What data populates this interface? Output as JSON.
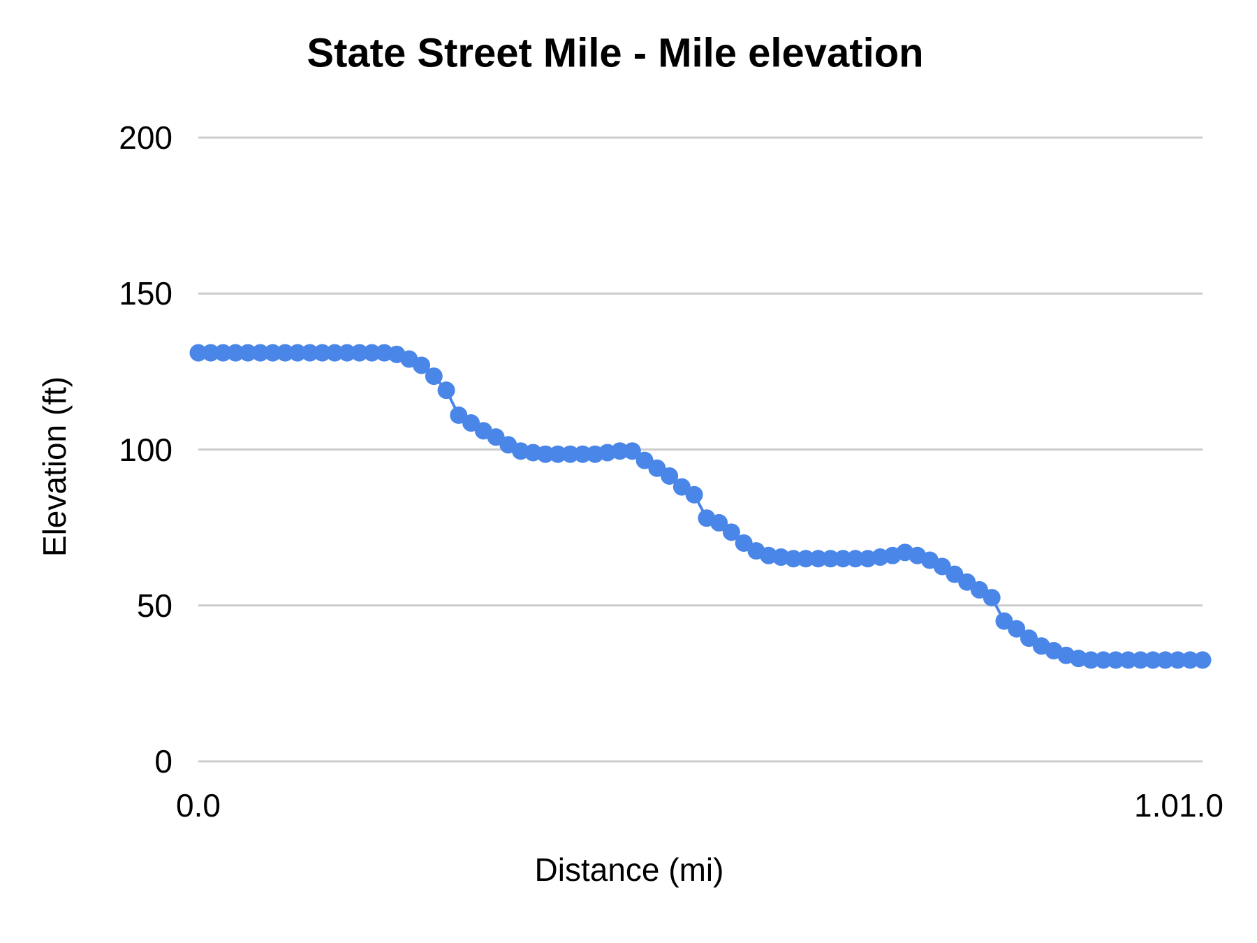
{
  "page": {
    "background": "#ffffff"
  },
  "chart_data": {
    "type": "line",
    "title": "State Street Mile - Mile elevation",
    "xlabel": "Distance (mi)",
    "ylabel": "Elevation (ft)",
    "legend": "none",
    "grid": true,
    "gridline_color": "#cccccc",
    "series_color": "#4a86e8",
    "point_style": "large-circles",
    "ylim": [
      0,
      200
    ],
    "xlim": [
      0,
      1.0125
    ],
    "y_ticks": [
      0,
      50,
      100,
      150,
      200
    ],
    "y_tick_labels": [
      "0",
      "50",
      "100",
      "150",
      "200"
    ],
    "x_tick_labels": [
      "0.0",
      "1.01.0"
    ],
    "series": [
      {
        "name": "Mile elevation",
        "x": [
          0,
          0.0125,
          0.025,
          0.0375,
          0.05,
          0.0625,
          0.075,
          0.0875,
          0.1,
          0.1125,
          0.125,
          0.1375,
          0.15,
          0.1625,
          0.175,
          0.1875,
          0.2,
          0.2125,
          0.225,
          0.2375,
          0.25,
          0.2625,
          0.275,
          0.2875,
          0.3,
          0.3125,
          0.325,
          0.3375,
          0.35,
          0.3625,
          0.375,
          0.3875,
          0.4,
          0.4125,
          0.425,
          0.4375,
          0.45,
          0.4625,
          0.475,
          0.4875,
          0.5,
          0.5125,
          0.525,
          0.5375,
          0.55,
          0.5625,
          0.575,
          0.5875,
          0.6,
          0.6125,
          0.625,
          0.6375,
          0.65,
          0.6625,
          0.675,
          0.6875,
          0.7,
          0.7125,
          0.725,
          0.7375,
          0.75,
          0.7625,
          0.775,
          0.7875,
          0.8,
          0.8125,
          0.825,
          0.8375,
          0.85,
          0.8625,
          0.875,
          0.8875,
          0.9,
          0.9125,
          0.925,
          0.9375,
          0.95,
          0.9625,
          0.975,
          0.9875,
          1.0,
          1.0125
        ],
        "y": [
          131,
          131,
          131,
          131,
          131,
          131,
          131,
          131,
          131,
          131,
          131,
          131,
          131,
          131,
          131,
          131,
          130.5,
          129,
          127,
          123.5,
          119,
          111,
          108.5,
          106,
          104,
          101.5,
          99.5,
          99,
          98.5,
          98.5,
          98.5,
          98.5,
          98.5,
          99,
          99.5,
          99.5,
          96.5,
          94,
          91.5,
          88,
          85.5,
          78,
          76.5,
          73.5,
          70,
          67.5,
          66,
          65.5,
          65,
          65,
          65,
          65,
          65,
          65,
          65,
          65.5,
          66,
          67,
          66,
          64.5,
          62.5,
          60,
          57.5,
          55,
          52.5,
          45,
          42.5,
          39.5,
          37,
          35.5,
          34,
          33,
          32.5,
          32.5,
          32.5,
          32.5,
          32.5,
          32.5,
          32.5,
          32.5,
          32.5,
          32.5
        ]
      }
    ]
  }
}
